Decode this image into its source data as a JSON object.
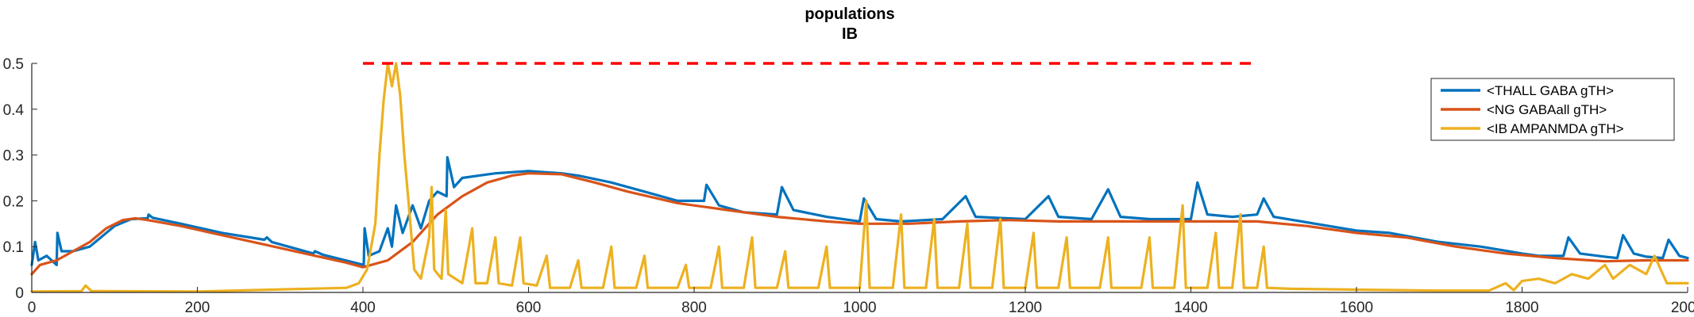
{
  "chart_data": {
    "type": "line",
    "title": "populations",
    "subtitle": "IB",
    "xlabel": "",
    "ylabel": "",
    "xlim": [
      0,
      2000
    ],
    "ylim": [
      0,
      0.5
    ],
    "x_ticks": [
      "0",
      "200",
      "400",
      "600",
      "800",
      "1000",
      "1200",
      "1400",
      "1600",
      "1800",
      "2000"
    ],
    "y_ticks": [
      "0",
      "0.1",
      "0.2",
      "0.3",
      "0.4",
      "0.5"
    ],
    "grid": false,
    "legend_position": "top-right",
    "series": [
      {
        "name": "<THALL GABA gTH>",
        "color": "#0072BD",
        "points": [
          [
            0,
            0.06
          ],
          [
            4,
            0.11
          ],
          [
            8,
            0.07
          ],
          [
            18,
            0.08
          ],
          [
            30,
            0.06
          ],
          [
            31,
            0.13
          ],
          [
            36,
            0.09
          ],
          [
            50,
            0.09
          ],
          [
            70,
            0.1
          ],
          [
            100,
            0.145
          ],
          [
            120,
            0.16
          ],
          [
            140,
            0.162
          ],
          [
            141,
            0.17
          ],
          [
            146,
            0.163
          ],
          [
            180,
            0.15
          ],
          [
            230,
            0.13
          ],
          [
            281,
            0.115
          ],
          [
            284,
            0.12
          ],
          [
            290,
            0.11
          ],
          [
            340,
            0.085
          ],
          [
            342,
            0.09
          ],
          [
            352,
            0.082
          ],
          [
            401,
            0.06
          ],
          [
            402,
            0.14
          ],
          [
            407,
            0.08
          ],
          [
            420,
            0.09
          ],
          [
            430,
            0.14
          ],
          [
            435,
            0.1
          ],
          [
            440,
            0.19
          ],
          [
            448,
            0.13
          ],
          [
            460,
            0.19
          ],
          [
            470,
            0.14
          ],
          [
            480,
            0.2
          ],
          [
            490,
            0.22
          ],
          [
            501,
            0.21
          ],
          [
            502,
            0.295
          ],
          [
            510,
            0.23
          ],
          [
            520,
            0.25
          ],
          [
            540,
            0.255
          ],
          [
            560,
            0.26
          ],
          [
            600,
            0.265
          ],
          [
            640,
            0.26
          ],
          [
            660,
            0.255
          ],
          [
            700,
            0.24
          ],
          [
            720,
            0.23
          ],
          [
            740,
            0.22
          ],
          [
            780,
            0.2
          ],
          [
            812,
            0.2
          ],
          [
            815,
            0.235
          ],
          [
            830,
            0.19
          ],
          [
            860,
            0.175
          ],
          [
            900,
            0.17
          ],
          [
            906,
            0.23
          ],
          [
            920,
            0.18
          ],
          [
            960,
            0.165
          ],
          [
            1000,
            0.155
          ],
          [
            1005,
            0.205
          ],
          [
            1020,
            0.16
          ],
          [
            1050,
            0.155
          ],
          [
            1100,
            0.16
          ],
          [
            1128,
            0.21
          ],
          [
            1140,
            0.165
          ],
          [
            1200,
            0.16
          ],
          [
            1228,
            0.21
          ],
          [
            1240,
            0.165
          ],
          [
            1280,
            0.16
          ],
          [
            1300,
            0.225
          ],
          [
            1315,
            0.165
          ],
          [
            1350,
            0.16
          ],
          [
            1400,
            0.16
          ],
          [
            1408,
            0.24
          ],
          [
            1420,
            0.17
          ],
          [
            1450,
            0.165
          ],
          [
            1480,
            0.17
          ],
          [
            1488,
            0.205
          ],
          [
            1500,
            0.165
          ],
          [
            1550,
            0.15
          ],
          [
            1600,
            0.135
          ],
          [
            1640,
            0.13
          ],
          [
            1700,
            0.11
          ],
          [
            1750,
            0.1
          ],
          [
            1800,
            0.085
          ],
          [
            1820,
            0.08
          ],
          [
            1850,
            0.08
          ],
          [
            1856,
            0.12
          ],
          [
            1870,
            0.085
          ],
          [
            1900,
            0.078
          ],
          [
            1915,
            0.075
          ],
          [
            1922,
            0.125
          ],
          [
            1935,
            0.085
          ],
          [
            1950,
            0.078
          ],
          [
            1970,
            0.075
          ],
          [
            1977,
            0.115
          ],
          [
            1990,
            0.08
          ],
          [
            2000,
            0.075
          ]
        ]
      },
      {
        "name": "<NG GABAall gTH>",
        "color": "#D95319",
        "points": [
          [
            0,
            0.04
          ],
          [
            10,
            0.06
          ],
          [
            30,
            0.07
          ],
          [
            50,
            0.09
          ],
          [
            70,
            0.11
          ],
          [
            90,
            0.14
          ],
          [
            110,
            0.158
          ],
          [
            125,
            0.162
          ],
          [
            140,
            0.158
          ],
          [
            180,
            0.145
          ],
          [
            230,
            0.125
          ],
          [
            280,
            0.105
          ],
          [
            330,
            0.085
          ],
          [
            380,
            0.065
          ],
          [
            400,
            0.055
          ],
          [
            430,
            0.07
          ],
          [
            460,
            0.11
          ],
          [
            490,
            0.17
          ],
          [
            520,
            0.21
          ],
          [
            550,
            0.24
          ],
          [
            580,
            0.255
          ],
          [
            600,
            0.26
          ],
          [
            640,
            0.258
          ],
          [
            680,
            0.24
          ],
          [
            720,
            0.22
          ],
          [
            780,
            0.195
          ],
          [
            840,
            0.18
          ],
          [
            900,
            0.165
          ],
          [
            960,
            0.155
          ],
          [
            1000,
            0.15
          ],
          [
            1060,
            0.15
          ],
          [
            1120,
            0.155
          ],
          [
            1180,
            0.158
          ],
          [
            1240,
            0.155
          ],
          [
            1300,
            0.155
          ],
          [
            1360,
            0.155
          ],
          [
            1420,
            0.155
          ],
          [
            1480,
            0.155
          ],
          [
            1540,
            0.145
          ],
          [
            1600,
            0.13
          ],
          [
            1660,
            0.12
          ],
          [
            1720,
            0.1
          ],
          [
            1780,
            0.085
          ],
          [
            1840,
            0.075
          ],
          [
            1900,
            0.068
          ],
          [
            1950,
            0.07
          ],
          [
            2000,
            0.07
          ]
        ]
      },
      {
        "name": "<IB AMPANMDA gTH>",
        "color": "#EDB120",
        "points": [
          [
            0,
            0.002
          ],
          [
            60,
            0.003
          ],
          [
            65,
            0.015
          ],
          [
            72,
            0.003
          ],
          [
            200,
            0.002
          ],
          [
            380,
            0.01
          ],
          [
            395,
            0.02
          ],
          [
            405,
            0.05
          ],
          [
            415,
            0.15
          ],
          [
            420,
            0.3
          ],
          [
            425,
            0.42
          ],
          [
            430,
            0.5
          ],
          [
            435,
            0.45
          ],
          [
            440,
            0.5
          ],
          [
            445,
            0.43
          ],
          [
            450,
            0.3
          ],
          [
            455,
            0.2
          ],
          [
            462,
            0.05
          ],
          [
            470,
            0.03
          ],
          [
            480,
            0.12
          ],
          [
            483,
            0.23
          ],
          [
            486,
            0.05
          ],
          [
            495,
            0.03
          ],
          [
            500,
            0.18
          ],
          [
            503,
            0.04
          ],
          [
            520,
            0.02
          ],
          [
            532,
            0.14
          ],
          [
            536,
            0.02
          ],
          [
            550,
            0.02
          ],
          [
            560,
            0.12
          ],
          [
            564,
            0.02
          ],
          [
            580,
            0.015
          ],
          [
            590,
            0.12
          ],
          [
            594,
            0.02
          ],
          [
            610,
            0.015
          ],
          [
            622,
            0.08
          ],
          [
            626,
            0.01
          ],
          [
            650,
            0.01
          ],
          [
            660,
            0.07
          ],
          [
            664,
            0.01
          ],
          [
            690,
            0.01
          ],
          [
            700,
            0.1
          ],
          [
            704,
            0.01
          ],
          [
            730,
            0.01
          ],
          [
            740,
            0.08
          ],
          [
            744,
            0.01
          ],
          [
            780,
            0.01
          ],
          [
            790,
            0.06
          ],
          [
            794,
            0.01
          ],
          [
            820,
            0.01
          ],
          [
            830,
            0.1
          ],
          [
            834,
            0.01
          ],
          [
            860,
            0.01
          ],
          [
            870,
            0.12
          ],
          [
            874,
            0.01
          ],
          [
            900,
            0.01
          ],
          [
            910,
            0.09
          ],
          [
            914,
            0.01
          ],
          [
            950,
            0.01
          ],
          [
            960,
            0.1
          ],
          [
            964,
            0.01
          ],
          [
            1000,
            0.01
          ],
          [
            1008,
            0.2
          ],
          [
            1012,
            0.01
          ],
          [
            1040,
            0.01
          ],
          [
            1050,
            0.17
          ],
          [
            1054,
            0.01
          ],
          [
            1080,
            0.01
          ],
          [
            1090,
            0.16
          ],
          [
            1094,
            0.01
          ],
          [
            1120,
            0.01
          ],
          [
            1130,
            0.15
          ],
          [
            1134,
            0.01
          ],
          [
            1160,
            0.01
          ],
          [
            1170,
            0.16
          ],
          [
            1174,
            0.01
          ],
          [
            1200,
            0.01
          ],
          [
            1210,
            0.13
          ],
          [
            1214,
            0.01
          ],
          [
            1240,
            0.01
          ],
          [
            1250,
            0.12
          ],
          [
            1254,
            0.01
          ],
          [
            1290,
            0.01
          ],
          [
            1300,
            0.12
          ],
          [
            1304,
            0.01
          ],
          [
            1340,
            0.01
          ],
          [
            1350,
            0.12
          ],
          [
            1354,
            0.01
          ],
          [
            1380,
            0.01
          ],
          [
            1390,
            0.19
          ],
          [
            1394,
            0.01
          ],
          [
            1420,
            0.01
          ],
          [
            1430,
            0.13
          ],
          [
            1434,
            0.01
          ],
          [
            1450,
            0.01
          ],
          [
            1460,
            0.17
          ],
          [
            1464,
            0.01
          ],
          [
            1480,
            0.01
          ],
          [
            1488,
            0.1
          ],
          [
            1492,
            0.01
          ],
          [
            1520,
            0.008
          ],
          [
            1600,
            0.006
          ],
          [
            1700,
            0.004
          ],
          [
            1760,
            0.004
          ],
          [
            1780,
            0.02
          ],
          [
            1790,
            0.005
          ],
          [
            1800,
            0.025
          ],
          [
            1820,
            0.03
          ],
          [
            1840,
            0.02
          ],
          [
            1860,
            0.04
          ],
          [
            1880,
            0.03
          ],
          [
            1900,
            0.06
          ],
          [
            1910,
            0.03
          ],
          [
            1930,
            0.06
          ],
          [
            1950,
            0.04
          ],
          [
            1960,
            0.08
          ],
          [
            1975,
            0.02
          ],
          [
            2000,
            0.02
          ]
        ]
      }
    ],
    "annotations": [
      {
        "type": "dashed-line",
        "color": "#FF0000",
        "y": 0.5,
        "x_start": 400,
        "x_end": 1480
      }
    ]
  }
}
